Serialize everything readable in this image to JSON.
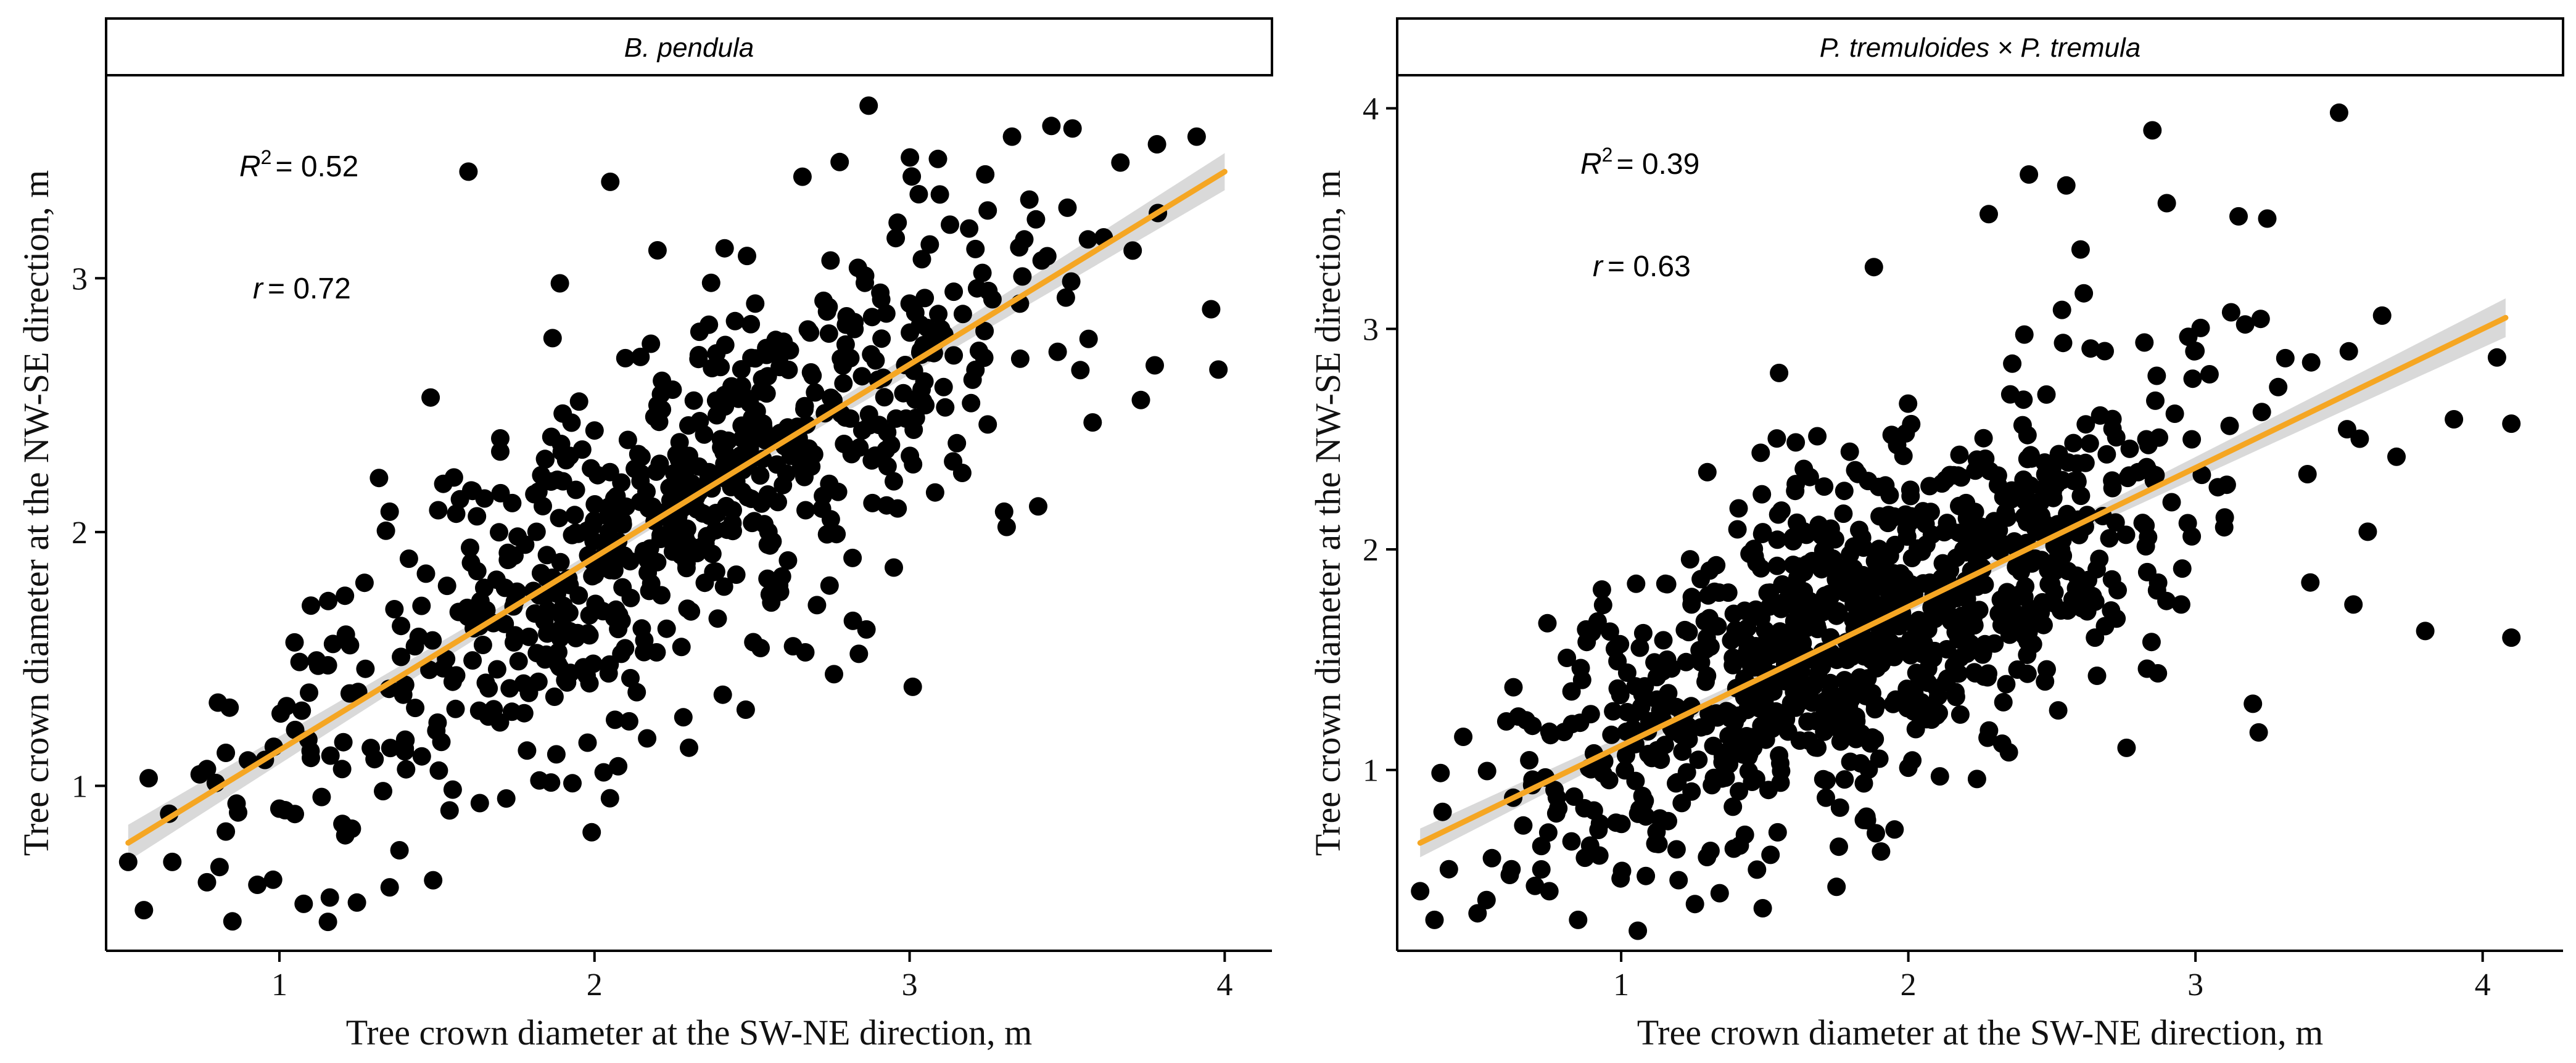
{
  "chart_data": [
    {
      "type": "scatter",
      "panel_title": "B. pendula",
      "xlabel": "Tree crown  diameter at the SW-NE direction, m",
      "ylabel": "Tree crown  diameter at the NW-SE direction, m",
      "xlim": [
        0.45,
        4.15
      ],
      "ylim": [
        0.35,
        3.8
      ],
      "xticks": [
        1,
        2,
        3,
        4
      ],
      "yticks": [
        1,
        2,
        3
      ],
      "stats": {
        "r2_symbol": "R",
        "r2_exp": "2",
        "r2_value": "= 0.52",
        "r_symbol": "r",
        "r_value": "= 0.72"
      },
      "fit": {
        "intercept": 0.38,
        "slope": 0.76,
        "x_range": [
          0.52,
          4.0
        ]
      },
      "colors": {
        "points": "#000000",
        "fit_line": "#f5a623",
        "ci_band": "#cccccc"
      },
      "points_generator": {
        "n": 700,
        "x_mean": 2.25,
        "x_sd": 0.62,
        "x_range": [
          0.52,
          3.98
        ],
        "resid_sd": 0.34,
        "seed": 17
      },
      "points": [
        [
          0.52,
          0.7
        ],
        [
          0.57,
          0.51
        ],
        [
          0.66,
          0.7
        ],
        [
          0.65,
          0.89
        ],
        [
          0.77,
          0.62
        ],
        [
          0.81,
          0.68
        ],
        [
          0.83,
          0.82
        ],
        [
          0.9,
          1.1
        ],
        [
          0.93,
          0.61
        ],
        [
          0.98,
          0.63
        ],
        [
          1.1,
          1.71
        ],
        [
          1.16,
          0.56
        ],
        [
          1.35,
          0.6
        ],
        [
          1.48,
          2.53
        ],
        [
          1.6,
          3.42
        ],
        [
          1.72,
          0.95
        ],
        [
          1.93,
          1.01
        ],
        [
          2.05,
          3.38
        ],
        [
          2.3,
          1.15
        ],
        [
          2.48,
          1.3
        ],
        [
          2.63,
          1.55
        ],
        [
          2.76,
          1.44
        ],
        [
          2.82,
          1.65
        ],
        [
          2.95,
          1.86
        ],
        [
          3.01,
          1.39
        ],
        [
          3.09,
          3.47
        ],
        [
          3.3,
          2.08
        ],
        [
          3.38,
          3.31
        ],
        [
          3.45,
          3.6
        ],
        [
          3.47,
          2.71
        ],
        [
          3.98,
          2.64
        ],
        [
          2.87,
          3.68
        ],
        [
          2.66,
          3.4
        ],
        [
          2.51,
          2.9
        ],
        [
          2.2,
          3.11
        ],
        [
          1.89,
          2.98
        ],
        [
          1.52,
          2.19
        ],
        [
          1.35,
          2.08
        ],
        [
          1.27,
          1.8
        ],
        [
          1.05,
          1.22
        ],
        [
          1.0,
          0.91
        ],
        [
          1.1,
          1.11
        ],
        [
          1.2,
          0.85
        ],
        [
          1.25,
          1.37
        ],
        [
          1.4,
          1.18
        ],
        [
          1.43,
          1.55
        ],
        [
          1.55,
          1.41
        ],
        [
          1.65,
          1.78
        ],
        [
          1.7,
          1.25
        ],
        [
          1.78,
          1.95
        ],
        [
          1.85,
          1.6
        ],
        [
          1.9,
          2.2
        ],
        [
          1.95,
          1.75
        ],
        [
          2.0,
          2.4
        ],
        [
          2.05,
          1.85
        ],
        [
          2.1,
          2.1
        ],
        [
          2.15,
          1.62
        ],
        [
          2.2,
          2.5
        ],
        [
          2.25,
          2.0
        ],
        [
          2.3,
          2.3
        ],
        [
          2.35,
          1.8
        ],
        [
          2.4,
          2.65
        ],
        [
          2.45,
          2.2
        ],
        [
          2.5,
          2.45
        ],
        [
          2.55,
          1.95
        ],
        [
          2.6,
          2.75
        ],
        [
          2.65,
          2.3
        ],
        [
          2.7,
          2.55
        ],
        [
          2.75,
          2.05
        ],
        [
          2.8,
          2.85
        ],
        [
          2.85,
          2.4
        ],
        [
          2.9,
          2.6
        ],
        [
          2.95,
          2.2
        ],
        [
          3.0,
          2.9
        ],
        [
          3.05,
          2.5
        ],
        [
          3.1,
          2.8
        ],
        [
          3.2,
          2.6
        ],
        [
          3.25,
          2.95
        ],
        [
          3.15,
          2.35
        ],
        [
          3.35,
          2.9
        ]
      ]
    },
    {
      "type": "scatter",
      "panel_title": "P. tremuloides × P. tremula",
      "xlabel": "Tree crown  diameter at the SW-NE direction, m",
      "ylabel": "Tree crown  diameter at the NW-SE direction, m",
      "xlim": [
        0.22,
        4.28
      ],
      "ylim": [
        0.18,
        4.15
      ],
      "xticks": [
        1,
        2,
        3,
        4
      ],
      "yticks": [
        1,
        2,
        3,
        4
      ],
      "stats": {
        "r2_symbol": "R",
        "r2_exp": "2",
        "r2_value": "= 0.39",
        "r_symbol": "r",
        "r_value": "= 0.63"
      },
      "fit": {
        "intercept": 0.48,
        "slope": 0.63,
        "x_range": [
          0.3,
          4.08
        ]
      },
      "colors": {
        "points": "#000000",
        "fit_line": "#f5a623",
        "ci_band": "#cccccc"
      },
      "points_generator": {
        "n": 1000,
        "x_mean": 1.85,
        "x_sd": 0.58,
        "x_range": [
          0.3,
          4.1
        ],
        "resid_sd": 0.38,
        "seed": 91
      },
      "points": [
        [
          0.3,
          0.45
        ],
        [
          0.35,
          0.32
        ],
        [
          0.4,
          0.55
        ],
        [
          0.45,
          1.15
        ],
        [
          0.5,
          0.35
        ],
        [
          0.55,
          0.6
        ],
        [
          0.6,
          1.22
        ],
        [
          0.7,
          0.95
        ],
        [
          0.75,
          0.45
        ],
        [
          0.85,
          0.32
        ],
        [
          0.88,
          1.58
        ],
        [
          1.05,
          0.95
        ],
        [
          1.2,
          0.5
        ],
        [
          1.3,
          2.35
        ],
        [
          1.55,
          2.8
        ],
        [
          1.75,
          0.47
        ],
        [
          1.88,
          3.28
        ],
        [
          2.28,
          3.52
        ],
        [
          2.35,
          1.08
        ],
        [
          2.42,
          3.7
        ],
        [
          2.55,
          3.65
        ],
        [
          2.6,
          3.36
        ],
        [
          2.76,
          1.1
        ],
        [
          2.85,
          3.9
        ],
        [
          2.9,
          3.57
        ],
        [
          3.15,
          3.51
        ],
        [
          3.2,
          1.3
        ],
        [
          3.25,
          3.5
        ],
        [
          3.5,
          3.98
        ],
        [
          3.55,
          1.75
        ],
        [
          3.65,
          3.06
        ],
        [
          3.7,
          2.42
        ],
        [
          3.8,
          1.63
        ],
        [
          3.9,
          2.59
        ],
        [
          4.05,
          2.87
        ],
        [
          4.1,
          2.57
        ],
        [
          4.1,
          1.6
        ],
        [
          3.22,
          1.17
        ],
        [
          3.4,
          1.85
        ],
        [
          3.6,
          2.08
        ],
        [
          3.0,
          2.9
        ],
        [
          3.1,
          2.1
        ],
        [
          2.95,
          1.75
        ],
        [
          2.8,
          2.35
        ],
        [
          2.7,
          2.05
        ],
        [
          2.65,
          1.6
        ]
      ]
    }
  ]
}
